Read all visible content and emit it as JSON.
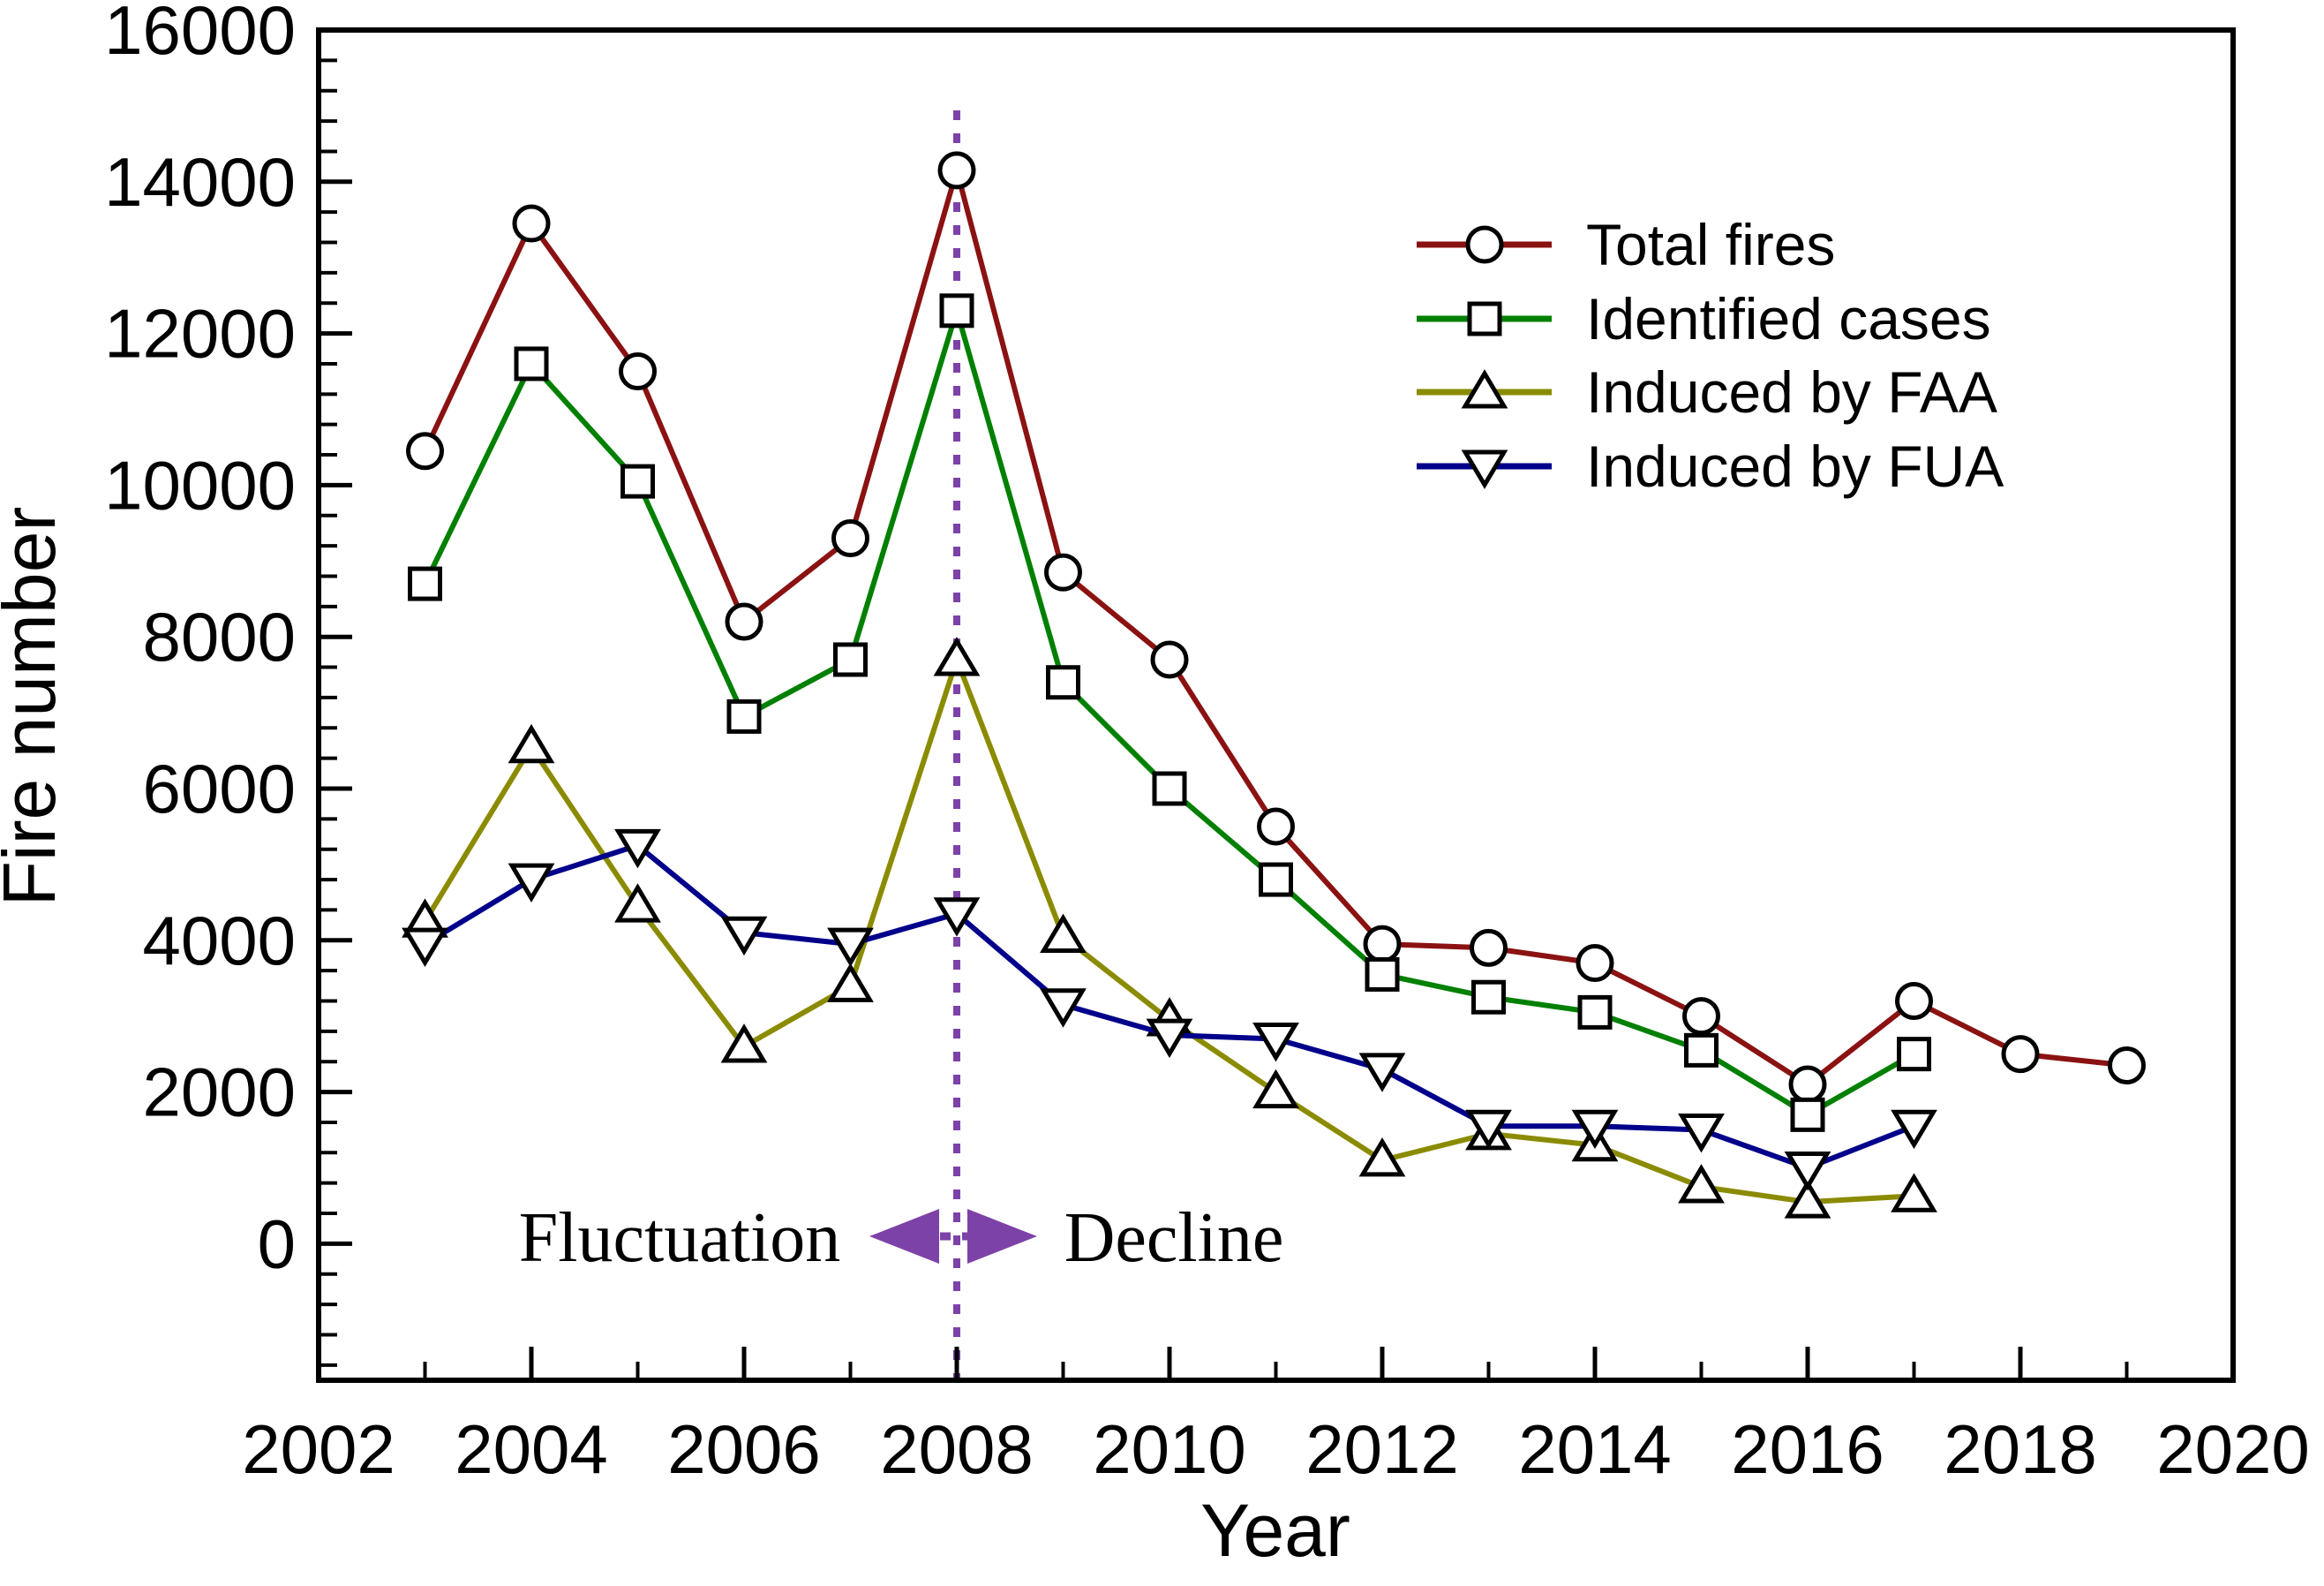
{
  "chart_data": {
    "type": "line",
    "title": "",
    "xlabel": "Year",
    "ylabel": "Fire number",
    "xlim": [
      2002,
      2020
    ],
    "ylim": [
      -1800,
      16000
    ],
    "x_major_ticks": [
      2002,
      2004,
      2006,
      2008,
      2010,
      2012,
      2014,
      2016,
      2018,
      2020
    ],
    "x_major_tick_labels": [
      "2002",
      "2004",
      "2006",
      "2008",
      "2010",
      "2012",
      "2014",
      "2016",
      "2018",
      "2020"
    ],
    "x_minor_tick_step_years": 1,
    "y_major_ticks": [
      0,
      2000,
      4000,
      6000,
      8000,
      10000,
      12000,
      14000,
      16000
    ],
    "y_major_tick_labels": [
      "0",
      "2000",
      "4000",
      "6000",
      "8000",
      "10000",
      "12000",
      "14000",
      "16000"
    ],
    "y_minor_tick_step": 400,
    "grid": false,
    "legend_position": "upper right",
    "frame": "closed-box",
    "series": [
      {
        "name": "Total fires",
        "slug": "total-fires",
        "color": "#8B1212",
        "marker": "circle",
        "x": [
          2003,
          2004,
          2005,
          2006,
          2007,
          2008,
          2009,
          2010,
          2011,
          2012,
          2013,
          2014,
          2015,
          2016,
          2017,
          2018,
          2019
        ],
        "y": [
          10450,
          13450,
          11500,
          8200,
          9300,
          14150,
          8850,
          7700,
          5500,
          3950,
          3900,
          3700,
          3000,
          2100,
          3200,
          2500,
          2350
        ]
      },
      {
        "name": "Identified cases",
        "slug": "identified-cases",
        "color": "#008000",
        "marker": "square",
        "x": [
          2003,
          2004,
          2005,
          2006,
          2007,
          2008,
          2009,
          2010,
          2011,
          2012,
          2013,
          2014,
          2015,
          2016,
          2017
        ],
        "y": [
          8700,
          11600,
          10050,
          6950,
          7700,
          12300,
          7400,
          6000,
          4800,
          3550,
          3250,
          3050,
          2550,
          1700,
          2500
        ]
      },
      {
        "name": "Induced by FAA",
        "slug": "induced-by-faa",
        "color": "#8B8B00",
        "marker": "triangle-up",
        "x": [
          2003,
          2004,
          2005,
          2006,
          2007,
          2008,
          2009,
          2010,
          2011,
          2012,
          2013,
          2014,
          2015,
          2016,
          2017
        ],
        "y": [
          4250,
          6550,
          4450,
          2600,
          3400,
          7700,
          4050,
          2950,
          2000,
          1100,
          1450,
          1300,
          750,
          550,
          630
        ]
      },
      {
        "name": "Induced by FUA",
        "slug": "induced-by-fua",
        "color": "#00008B",
        "marker": "triangle-down",
        "x": [
          2003,
          2004,
          2005,
          2006,
          2007,
          2008,
          2009,
          2010,
          2011,
          2012,
          2013,
          2014,
          2015,
          2016,
          2017
        ],
        "y": [
          3950,
          4800,
          5250,
          4100,
          3950,
          4350,
          3150,
          2750,
          2700,
          2300,
          1550,
          1550,
          1500,
          1000,
          1550
        ]
      }
    ],
    "annotations": {
      "divider_x": 2008,
      "divider_style": "dashed-vertical",
      "divider_color": "#7D42A8",
      "left_label": "Fluctuation",
      "right_label": "Decline",
      "arrow_type": "double-headed-dashed",
      "arrow_color": "#7D42A8"
    }
  }
}
